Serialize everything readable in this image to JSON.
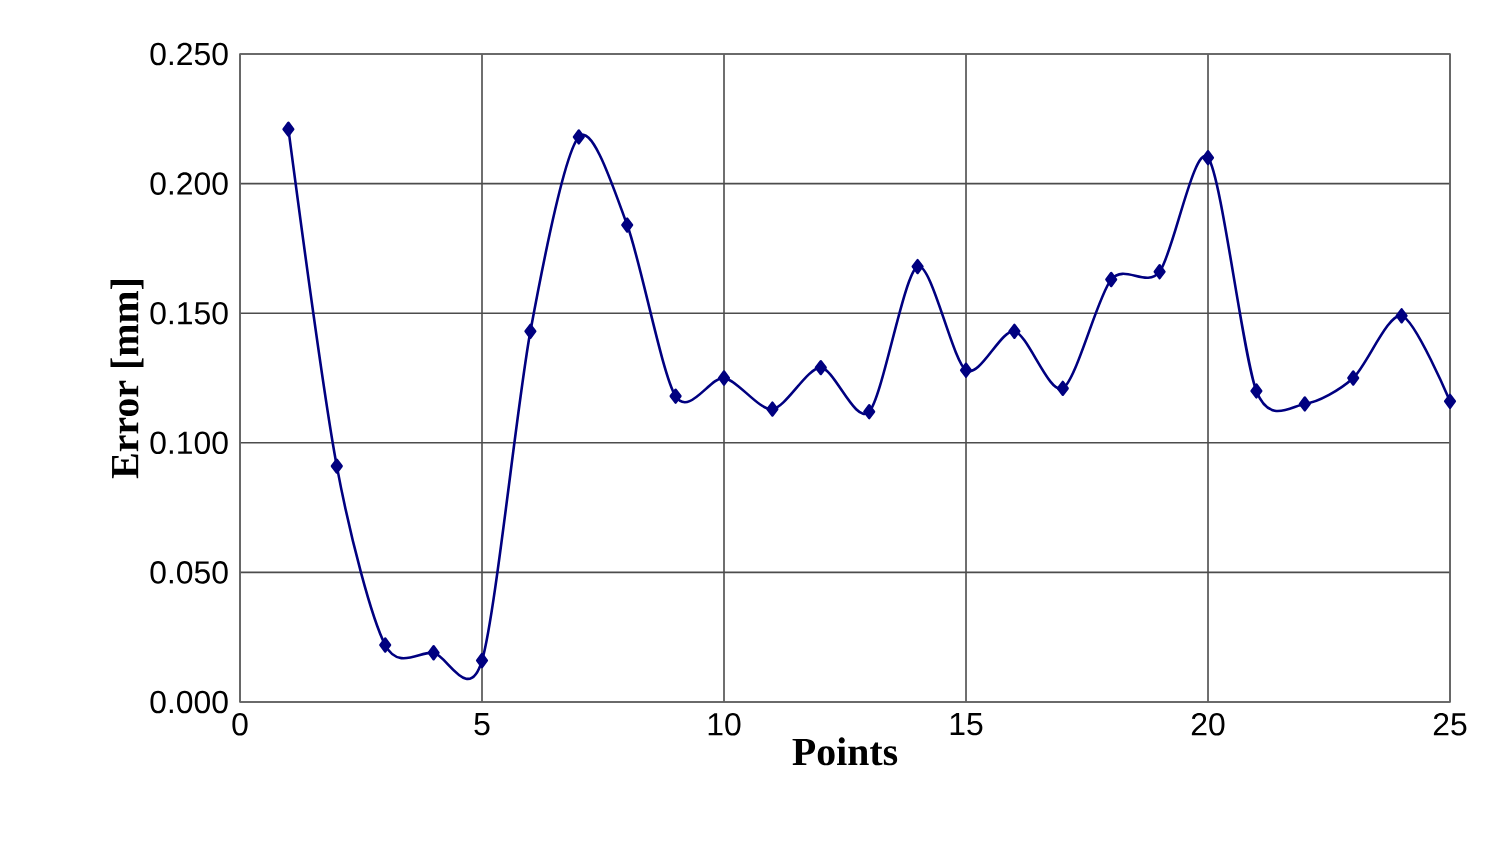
{
  "chart_data": {
    "type": "line",
    "xlabel": "Points",
    "ylabel": "Error [mm]",
    "x": [
      1,
      2,
      3,
      4,
      5,
      6,
      7,
      8,
      9,
      10,
      11,
      12,
      13,
      14,
      15,
      16,
      17,
      18,
      19,
      20,
      21,
      22,
      23,
      24,
      25
    ],
    "series": [
      {
        "color": "#000080",
        "values": [
          0.221,
          0.091,
          0.022,
          0.019,
          0.016,
          0.143,
          0.218,
          0.184,
          0.118,
          0.125,
          0.113,
          0.129,
          0.112,
          0.168,
          0.128,
          0.143,
          0.121,
          0.163,
          0.166,
          0.21,
          0.12,
          0.115,
          0.125,
          0.149,
          0.116
        ]
      }
    ],
    "xlim": [
      0,
      25
    ],
    "ylim": [
      0,
      0.25
    ],
    "xticks": [
      0,
      5,
      10,
      15,
      20,
      25
    ],
    "yticks": [
      {
        "value": 0,
        "label": "0.000"
      },
      {
        "value": 0.05,
        "label": "0.050"
      },
      {
        "value": 0.1,
        "label": "0.100"
      },
      {
        "value": 0.15,
        "label": "0.150"
      },
      {
        "value": 0.2,
        "label": "0.200"
      },
      {
        "value": 0.25,
        "label": "0.250"
      }
    ],
    "grid": true,
    "marker": "diamond",
    "line_style": "solid"
  }
}
